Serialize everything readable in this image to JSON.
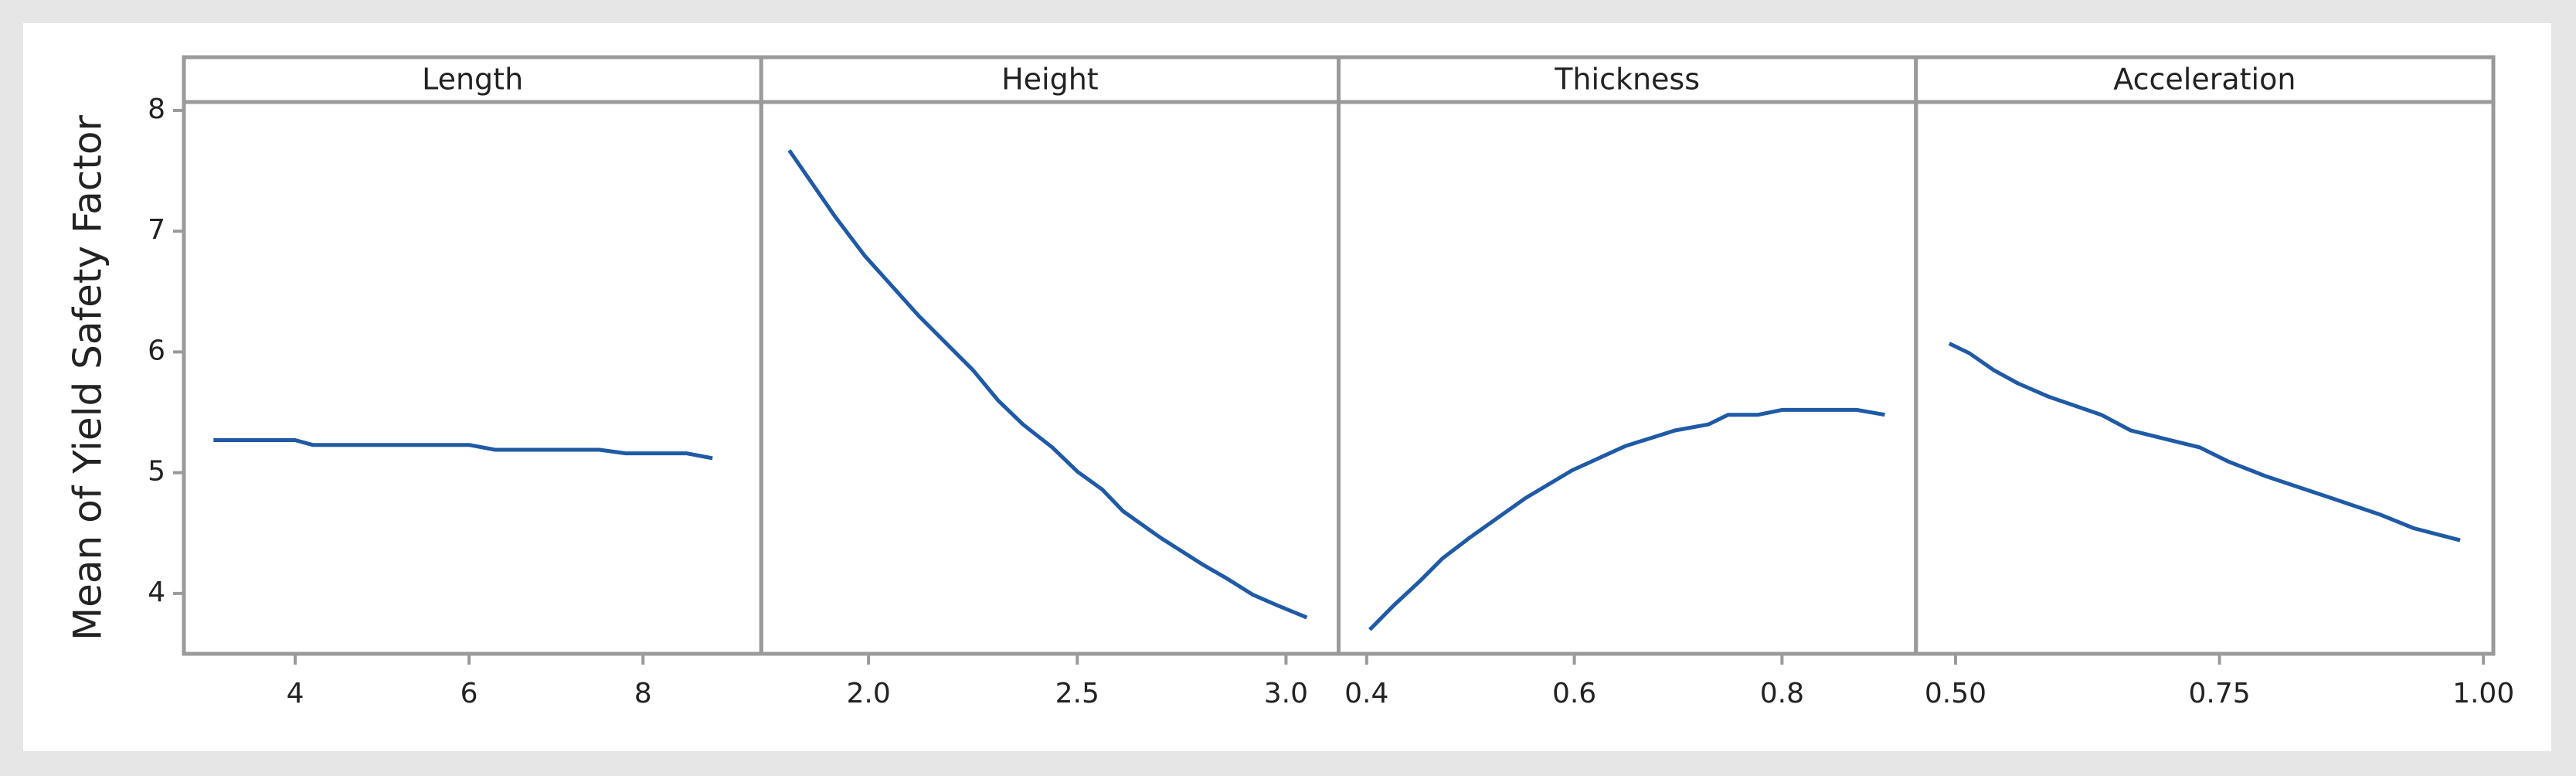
{
  "chart_data": [
    {
      "type": "line",
      "title": "Length",
      "ylabel": "Mean of Yield Safety Factor",
      "x": [
        3.06,
        3.5,
        4,
        4.2,
        5,
        6,
        6.3,
        7,
        7.5,
        7.8,
        8.5,
        8.8
      ],
      "values": [
        5.27,
        5.27,
        5.27,
        5.23,
        5.23,
        5.23,
        5.19,
        5.19,
        5.19,
        5.16,
        5.16,
        5.12
      ],
      "xlim": [
        2.72,
        9.36
      ],
      "xticks": [
        4,
        6,
        8
      ],
      "ylim": [
        3.5,
        8.07
      ],
      "yticks": [
        4,
        5,
        6,
        7,
        8
      ],
      "color": "#1f5aa6"
    },
    {
      "type": "line",
      "title": "Height",
      "x": [
        1.81,
        1.92,
        1.99,
        2.12,
        2.25,
        2.31,
        2.37,
        2.44,
        2.5,
        2.56,
        2.61,
        2.7,
        2.8,
        2.86,
        2.92,
        2.98,
        3.05
      ],
      "values": [
        7.67,
        7.12,
        6.8,
        6.3,
        5.85,
        5.6,
        5.4,
        5.21,
        5.01,
        4.86,
        4.68,
        4.46,
        4.24,
        4.12,
        3.99,
        3.9,
        3.8
      ],
      "xlim": [
        1.743,
        3.126
      ],
      "xticks": [
        {
          "value": 2.0,
          "label": "2.0"
        },
        2.5,
        {
          "value": 3.0,
          "label": "3.0"
        }
      ],
      "ylim": [
        3.5,
        8.07
      ],
      "color": "#1f5aa6"
    },
    {
      "type": "line",
      "title": "Thickness",
      "x": [
        0.403,
        0.426,
        0.451,
        0.473,
        0.499,
        0.553,
        0.598,
        0.649,
        0.697,
        0.729,
        0.748,
        0.777,
        0.8,
        0.872,
        0.899
      ],
      "values": [
        3.7,
        3.9,
        4.1,
        4.29,
        4.46,
        4.79,
        5.02,
        5.22,
        5.35,
        5.4,
        5.48,
        5.48,
        5.52,
        5.52,
        5.48
      ],
      "xlim": [
        0.373,
        0.929
      ],
      "xticks": [
        0.4,
        0.6,
        0.8
      ],
      "ylim": [
        3.5,
        8.07
      ],
      "color": "#1f5aa6"
    },
    {
      "type": "line",
      "title": "Acceleration",
      "x": [
        0.494,
        0.513,
        0.536,
        0.559,
        0.588,
        0.638,
        0.666,
        0.731,
        0.759,
        0.794,
        0.856,
        0.903,
        0.934,
        0.978
      ],
      "values": [
        6.07,
        5.99,
        5.85,
        5.74,
        5.63,
        5.48,
        5.35,
        5.21,
        5.09,
        4.97,
        4.79,
        4.65,
        4.54,
        4.44
      ],
      "xlim": [
        0.4625,
        1.0094
      ],
      "xticks": [
        {
          "value": 0.5,
          "label": "0.50"
        },
        0.75,
        {
          "value": 1.0,
          "label": "1.00"
        }
      ],
      "ylim": [
        3.5,
        8.07
      ],
      "color": "#1f5aa6"
    }
  ]
}
